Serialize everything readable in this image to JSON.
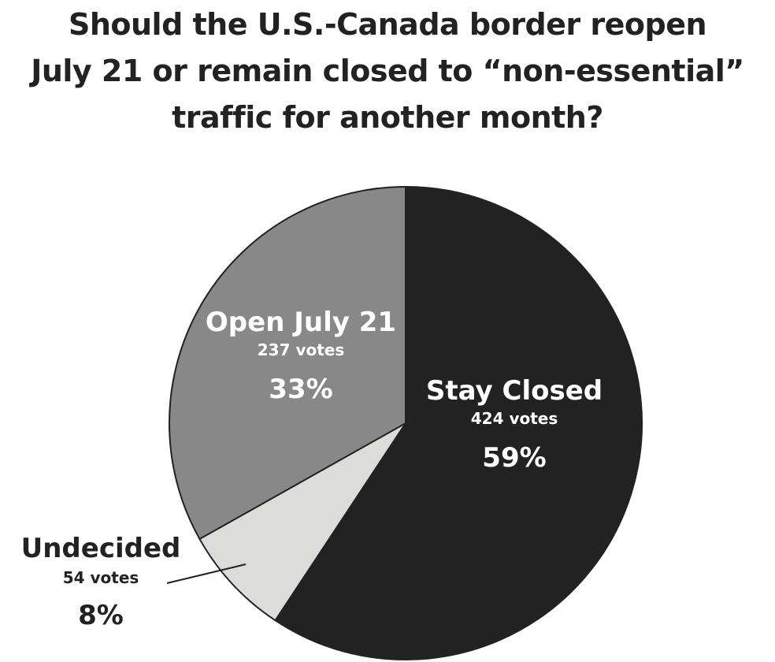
{
  "chart_data": {
    "type": "pie",
    "title_lines": [
      "Should the U.S.-Canada border reopen",
      "July 21 or remain closed to “non-essential”",
      "traffic for another month?"
    ],
    "slices": [
      {
        "name": "Stay Closed",
        "votes_label": "424 votes",
        "votes": 424,
        "percent_label": "59%",
        "color": "#222222",
        "text_color": "#ffffff"
      },
      {
        "name": "Undecided",
        "votes_label": "54 votes",
        "votes": 54,
        "percent_label": "8%",
        "color": "#dcdcdb",
        "text_color": "#222222"
      },
      {
        "name": "Open July 21",
        "votes_label": "237 votes",
        "votes": 237,
        "percent_label": "33%",
        "color": "#888888",
        "text_color": "#ffffff"
      }
    ],
    "outline_color": "#222222"
  }
}
